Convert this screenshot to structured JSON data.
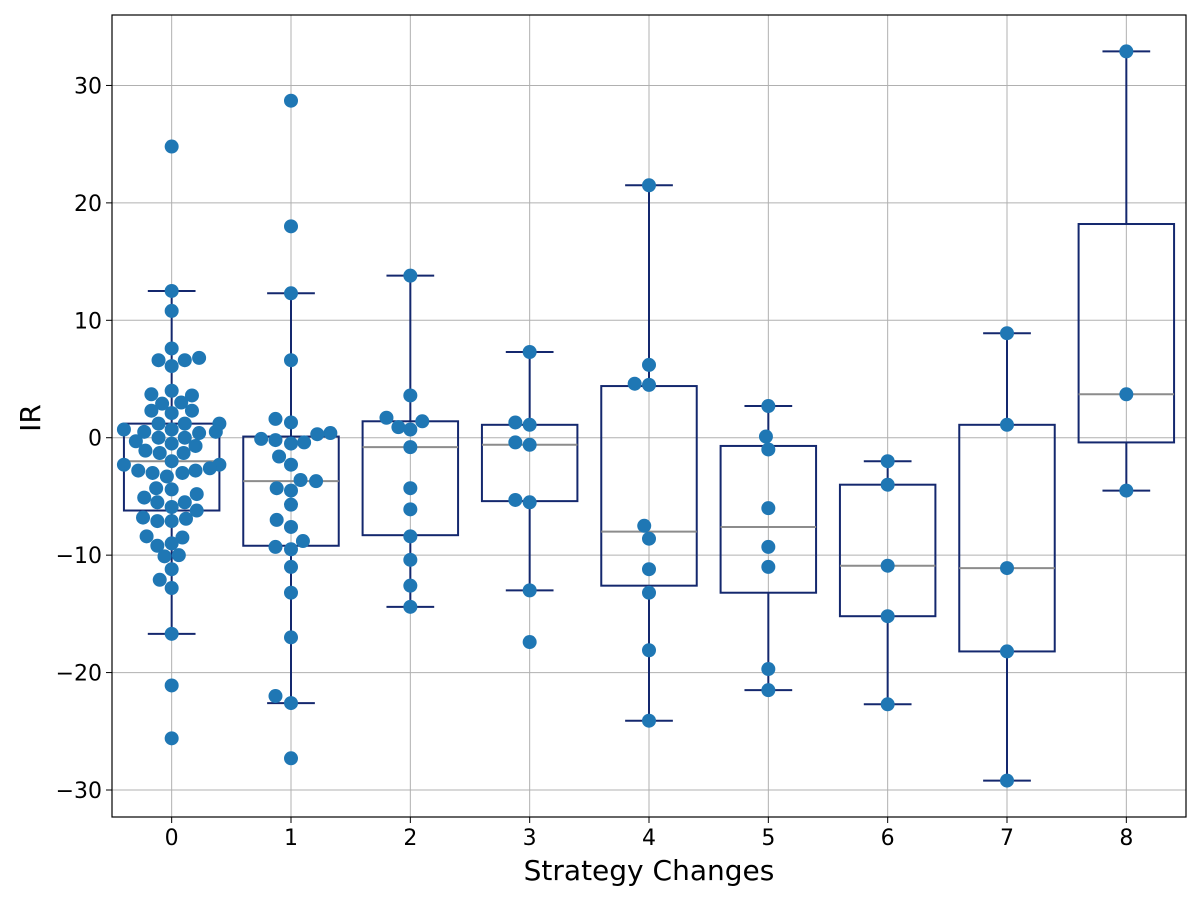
{
  "chart_data": {
    "type": "box",
    "xlabel": "Strategy Changes",
    "ylabel": "IR",
    "xlim": [
      -0.5,
      8.5
    ],
    "ylim": [
      -32.3,
      36
    ],
    "yticks": [
      30,
      20,
      10,
      0,
      -10,
      -20,
      -30
    ],
    "ytick_labels": [
      "30",
      "20",
      "10",
      "0",
      "−10",
      "−20",
      "−30"
    ],
    "categories": [
      "0",
      "1",
      "2",
      "3",
      "4",
      "5",
      "6",
      "7",
      "8"
    ],
    "grid": true,
    "colors": {
      "points": "#1f77b4",
      "box": "#14286e",
      "median": "#8c8c8c",
      "grid": "#b0b0b0"
    },
    "boxes": [
      {
        "category": "0",
        "q1": -6.2,
        "median": -2.0,
        "q3": 1.2,
        "whisker_low": -16.7,
        "whisker_high": 12.5
      },
      {
        "category": "1",
        "q1": -9.2,
        "median": -3.7,
        "q3": 0.1,
        "whisker_low": -22.6,
        "whisker_high": 12.3
      },
      {
        "category": "2",
        "q1": -8.3,
        "median": -0.8,
        "q3": 1.4,
        "whisker_low": -14.4,
        "whisker_high": 13.8
      },
      {
        "category": "3",
        "q1": -5.4,
        "median": -0.6,
        "q3": 1.1,
        "whisker_low": -13.0,
        "whisker_high": 7.3
      },
      {
        "category": "4",
        "q1": -12.6,
        "median": -8.0,
        "q3": 4.4,
        "whisker_low": -24.1,
        "whisker_high": 21.5
      },
      {
        "category": "5",
        "q1": -13.2,
        "median": -7.6,
        "q3": -0.7,
        "whisker_low": -21.5,
        "whisker_high": 2.7
      },
      {
        "category": "6",
        "q1": -15.2,
        "median": -10.9,
        "q3": -4.0,
        "whisker_low": -22.7,
        "whisker_high": -2.0
      },
      {
        "category": "7",
        "q1": -18.2,
        "median": -11.1,
        "q3": 1.1,
        "whisker_low": -29.2,
        "whisker_high": 8.9
      },
      {
        "category": "8",
        "q1": -0.4,
        "median": 3.7,
        "q3": 18.2,
        "whisker_low": -4.5,
        "whisker_high": 32.9
      }
    ],
    "points": [
      {
        "x": 0.0,
        "y": 24.8
      },
      {
        "x": 0.0,
        "y": 12.5
      },
      {
        "x": 0.0,
        "y": 10.8
      },
      {
        "x": 0.0,
        "y": 7.6
      },
      {
        "x": 0.11,
        "y": 6.6
      },
      {
        "x": -0.11,
        "y": 6.6
      },
      {
        "x": 0.23,
        "y": 6.8
      },
      {
        "x": 0.0,
        "y": 6.1
      },
      {
        "x": 0.0,
        "y": 4.0
      },
      {
        "x": -0.17,
        "y": 3.7
      },
      {
        "x": 0.17,
        "y": 3.6
      },
      {
        "x": -0.08,
        "y": 2.9
      },
      {
        "x": 0.08,
        "y": 3.0
      },
      {
        "x": -0.17,
        "y": 2.3
      },
      {
        "x": 0.17,
        "y": 2.3
      },
      {
        "x": 0.0,
        "y": 2.1
      },
      {
        "x": -0.11,
        "y": 1.2
      },
      {
        "x": 0.11,
        "y": 1.2
      },
      {
        "x": 0.4,
        "y": 1.2
      },
      {
        "x": -0.4,
        "y": 0.7
      },
      {
        "x": 0.0,
        "y": 0.7
      },
      {
        "x": -0.23,
        "y": 0.5
      },
      {
        "x": 0.23,
        "y": 0.4
      },
      {
        "x": 0.37,
        "y": 0.5
      },
      {
        "x": -0.11,
        "y": 0.0
      },
      {
        "x": 0.11,
        "y": 0.0
      },
      {
        "x": -0.3,
        "y": -0.3
      },
      {
        "x": 0.0,
        "y": -0.5
      },
      {
        "x": 0.2,
        "y": -0.7
      },
      {
        "x": -0.22,
        "y": -1.1
      },
      {
        "x": -0.1,
        "y": -1.3
      },
      {
        "x": 0.1,
        "y": -1.3
      },
      {
        "x": 0.0,
        "y": -2.0
      },
      {
        "x": -0.4,
        "y": -2.3
      },
      {
        "x": 0.4,
        "y": -2.3
      },
      {
        "x": 0.32,
        "y": -2.6
      },
      {
        "x": -0.28,
        "y": -2.8
      },
      {
        "x": 0.2,
        "y": -2.8
      },
      {
        "x": -0.16,
        "y": -3.0
      },
      {
        "x": 0.09,
        "y": -3.0
      },
      {
        "x": -0.04,
        "y": -3.3
      },
      {
        "x": -0.13,
        "y": -4.3
      },
      {
        "x": 0.0,
        "y": -4.4
      },
      {
        "x": 0.21,
        "y": -4.8
      },
      {
        "x": -0.23,
        "y": -5.1
      },
      {
        "x": -0.12,
        "y": -5.5
      },
      {
        "x": 0.11,
        "y": -5.5
      },
      {
        "x": 0.0,
        "y": -5.9
      },
      {
        "x": 0.21,
        "y": -6.2
      },
      {
        "x": -0.24,
        "y": -6.8
      },
      {
        "x": 0.12,
        "y": -6.9
      },
      {
        "x": -0.12,
        "y": -7.1
      },
      {
        "x": 0.0,
        "y": -7.1
      },
      {
        "x": -0.21,
        "y": -8.4
      },
      {
        "x": 0.09,
        "y": -8.5
      },
      {
        "x": -0.12,
        "y": -9.2
      },
      {
        "x": 0.0,
        "y": -9.0
      },
      {
        "x": -0.06,
        "y": -10.1
      },
      {
        "x": 0.06,
        "y": -10.0
      },
      {
        "x": 0.0,
        "y": -11.2
      },
      {
        "x": -0.1,
        "y": -12.1
      },
      {
        "x": 0.0,
        "y": -12.8
      },
      {
        "x": 0.0,
        "y": -16.7
      },
      {
        "x": 0.0,
        "y": -21.1
      },
      {
        "x": 0.0,
        "y": -25.6
      },
      {
        "x": 1.0,
        "y": 28.7
      },
      {
        "x": 1.0,
        "y": 18.0
      },
      {
        "x": 1.0,
        "y": 12.3
      },
      {
        "x": 1.0,
        "y": 6.6
      },
      {
        "x": 0.87,
        "y": 1.6
      },
      {
        "x": 1.0,
        "y": 1.3
      },
      {
        "x": 1.33,
        "y": 0.4
      },
      {
        "x": 1.22,
        "y": 0.3
      },
      {
        "x": 0.75,
        "y": -0.1
      },
      {
        "x": 0.87,
        "y": -0.2
      },
      {
        "x": 1.11,
        "y": -0.4
      },
      {
        "x": 1.0,
        "y": -0.5
      },
      {
        "x": 0.9,
        "y": -1.6
      },
      {
        "x": 1.0,
        "y": -2.3
      },
      {
        "x": 1.08,
        "y": -3.6
      },
      {
        "x": 1.21,
        "y": -3.7
      },
      {
        "x": 0.88,
        "y": -4.3
      },
      {
        "x": 1.0,
        "y": -4.5
      },
      {
        "x": 1.0,
        "y": -5.7
      },
      {
        "x": 0.88,
        "y": -7.0
      },
      {
        "x": 1.0,
        "y": -7.6
      },
      {
        "x": 1.1,
        "y": -8.8
      },
      {
        "x": 0.87,
        "y": -9.3
      },
      {
        "x": 1.0,
        "y": -9.5
      },
      {
        "x": 1.0,
        "y": -11.0
      },
      {
        "x": 1.0,
        "y": -13.2
      },
      {
        "x": 1.0,
        "y": -17.0
      },
      {
        "x": 0.87,
        "y": -22.0
      },
      {
        "x": 1.0,
        "y": -22.6
      },
      {
        "x": 1.0,
        "y": -27.3
      },
      {
        "x": 2.0,
        "y": 13.8
      },
      {
        "x": 2.0,
        "y": 3.6
      },
      {
        "x": 1.8,
        "y": 1.7
      },
      {
        "x": 2.1,
        "y": 1.4
      },
      {
        "x": 1.9,
        "y": 0.9
      },
      {
        "x": 2.0,
        "y": 0.7
      },
      {
        "x": 2.0,
        "y": -0.8
      },
      {
        "x": 2.0,
        "y": -4.3
      },
      {
        "x": 2.0,
        "y": -6.1
      },
      {
        "x": 2.0,
        "y": -8.4
      },
      {
        "x": 2.0,
        "y": -10.4
      },
      {
        "x": 2.0,
        "y": -12.6
      },
      {
        "x": 2.0,
        "y": -14.4
      },
      {
        "x": 3.0,
        "y": 7.3
      },
      {
        "x": 2.88,
        "y": 1.3
      },
      {
        "x": 3.0,
        "y": 1.1
      },
      {
        "x": 2.88,
        "y": -0.4
      },
      {
        "x": 3.0,
        "y": -0.6
      },
      {
        "x": 2.88,
        "y": -5.3
      },
      {
        "x": 3.0,
        "y": -5.5
      },
      {
        "x": 3.0,
        "y": -13.0
      },
      {
        "x": 3.0,
        "y": -17.4
      },
      {
        "x": 4.0,
        "y": 21.5
      },
      {
        "x": 4.0,
        "y": 6.2
      },
      {
        "x": 3.88,
        "y": 4.6
      },
      {
        "x": 4.0,
        "y": 4.5
      },
      {
        "x": 3.96,
        "y": -7.5
      },
      {
        "x": 4.0,
        "y": -8.6
      },
      {
        "x": 4.0,
        "y": -11.2
      },
      {
        "x": 4.0,
        "y": -13.2
      },
      {
        "x": 4.0,
        "y": -18.1
      },
      {
        "x": 4.0,
        "y": -24.1
      },
      {
        "x": 5.0,
        "y": 2.7
      },
      {
        "x": 4.98,
        "y": 0.1
      },
      {
        "x": 5.0,
        "y": -1.0
      },
      {
        "x": 5.0,
        "y": -6.0
      },
      {
        "x": 5.0,
        "y": -9.3
      },
      {
        "x": 5.0,
        "y": -11.0
      },
      {
        "x": 5.0,
        "y": -19.7
      },
      {
        "x": 5.0,
        "y": -21.5
      },
      {
        "x": 6.0,
        "y": -2.0
      },
      {
        "x": 6.0,
        "y": -4.0
      },
      {
        "x": 6.0,
        "y": -10.9
      },
      {
        "x": 6.0,
        "y": -15.2
      },
      {
        "x": 6.0,
        "y": -22.7
      },
      {
        "x": 7.0,
        "y": 8.9
      },
      {
        "x": 7.0,
        "y": 1.1
      },
      {
        "x": 7.0,
        "y": -11.1
      },
      {
        "x": 7.0,
        "y": -18.2
      },
      {
        "x": 7.0,
        "y": -29.2
      },
      {
        "x": 8.0,
        "y": 32.9
      },
      {
        "x": 8.0,
        "y": 3.7
      },
      {
        "x": 8.0,
        "y": -4.5
      }
    ]
  }
}
